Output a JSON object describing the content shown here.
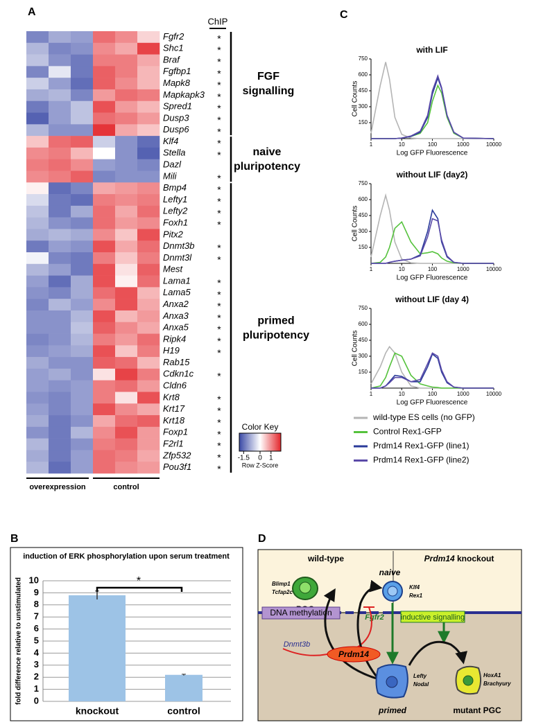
{
  "panels": [
    "A",
    "B",
    "C",
    "D"
  ],
  "chart_data": [
    {
      "type": "heatmap",
      "header_label": "ChIP",
      "rows": [
        "Fgfr2",
        "Shc1",
        "Braf",
        "Fgfbp1",
        "Mapk8",
        "Mapkapk3",
        "Spred1",
        "Dusp3",
        "Dusp6",
        "Klf4",
        "Stella",
        "Dazl",
        "Mili",
        "Bmp4",
        "Lefty1",
        "Lefty2",
        "Foxh1",
        "Pitx2",
        "Dnmt3b",
        "Dnmt3l",
        "Mest",
        "Lama1",
        "Lama5",
        "Anxa2",
        "Anxa3",
        "Anxa5",
        "Ripk4",
        "H19",
        "Rab15",
        "Cdkn1c",
        "Cldn6",
        "Krt8",
        "Krt17",
        "Krt18",
        "Foxp1",
        "F2rl1",
        "Zfp532",
        "Pou3f1"
      ],
      "values": [
        [
          -1,
          -0.7,
          -0.8,
          1,
          0.8,
          0.3
        ],
        [
          -0.6,
          -1,
          -0.9,
          0.8,
          0.6,
          1.3
        ],
        [
          -0.5,
          -0.9,
          -1.1,
          0.9,
          0.9,
          0.6
        ],
        [
          -1,
          -0.2,
          -1.1,
          1.1,
          0.9,
          0.5
        ],
        [
          -0.4,
          -0.8,
          -1.2,
          1.1,
          0.8,
          0.5
        ],
        [
          -0.7,
          -0.6,
          -1,
          0.7,
          1,
          0.9
        ],
        [
          -1.1,
          -0.8,
          -0.5,
          1.2,
          0.7,
          0.5
        ],
        [
          -1.3,
          -0.8,
          -0.5,
          1,
          0.9,
          0.7
        ],
        [
          -0.6,
          -0.9,
          -0.9,
          1.4,
          0.6,
          0.4
        ],
        [
          0.4,
          1,
          1.1,
          -0.4,
          -0.9,
          -1.2
        ],
        [
          0.8,
          0.9,
          0.5,
          0,
          -0.9,
          -1.3
        ],
        [
          0.9,
          1,
          0.8,
          -0.8,
          -0.9,
          -1
        ],
        [
          0.8,
          0.9,
          1.1,
          -1,
          -0.9,
          -0.9
        ],
        [
          0.1,
          -1.2,
          -1,
          0.6,
          0.7,
          0.8
        ],
        [
          -0.3,
          -1.1,
          -1.2,
          0.9,
          0.8,
          0.9
        ],
        [
          -0.5,
          -1.1,
          -0.7,
          1,
          0.6,
          1
        ],
        [
          -0.6,
          -0.9,
          -1,
          1,
          0.7,
          0.8
        ],
        [
          -0.7,
          -0.6,
          -0.7,
          0.8,
          0.4,
          1.2
        ],
        [
          -1.1,
          -0.8,
          -0.9,
          1.2,
          0.6,
          1
        ],
        [
          -0.1,
          -1,
          -1.1,
          0.9,
          0.4,
          0.9
        ],
        [
          -0.6,
          -0.8,
          -1.1,
          1.2,
          0.2,
          1.1
        ],
        [
          -0.8,
          -1.2,
          -0.7,
          1.2,
          0.1,
          1
        ],
        [
          -0.9,
          -1,
          -0.7,
          1,
          1.2,
          0.5
        ],
        [
          -1,
          -0.6,
          -0.8,
          0.8,
          1.2,
          0.6
        ],
        [
          -0.9,
          -0.9,
          -0.6,
          1.2,
          0.5,
          0.7
        ],
        [
          -0.9,
          -0.9,
          -0.5,
          1.1,
          0.8,
          0.6
        ],
        [
          -1,
          -0.9,
          -0.6,
          0.9,
          0.7,
          1
        ],
        [
          -0.9,
          -0.8,
          -0.7,
          1.2,
          0.4,
          0.9
        ],
        [
          -0.7,
          -0.9,
          -0.9,
          1.1,
          1,
          0.5
        ],
        [
          -0.8,
          -0.7,
          -0.9,
          0.2,
          1.3,
          0.9
        ],
        [
          -0.8,
          -0.9,
          -0.8,
          0.9,
          1,
          0.7
        ],
        [
          -0.9,
          -1,
          -0.8,
          0.9,
          0.2,
          1.2
        ],
        [
          -0.8,
          -1,
          -0.8,
          1.2,
          0.8,
          0.6
        ],
        [
          -0.7,
          -1.1,
          -0.9,
          0.6,
          1,
          1.1
        ],
        [
          -0.9,
          -1.1,
          -0.6,
          0.8,
          1.2,
          0.7
        ],
        [
          -0.6,
          -1.1,
          -0.9,
          0.9,
          1,
          0.7
        ],
        [
          -0.7,
          -1.1,
          -0.8,
          1,
          0.9,
          0.6
        ],
        [
          -0.6,
          -1.2,
          -0.8,
          1,
          0.8,
          0.7
        ]
      ],
      "chip": [
        "*",
        "*",
        "*",
        "*",
        "*",
        "*",
        "*",
        "*",
        "*",
        "*",
        "*",
        null,
        "*",
        "*",
        "*",
        "*",
        "*",
        null,
        "*",
        "*",
        null,
        "*",
        "*",
        "*",
        "*",
        "*",
        "*",
        "*",
        null,
        "*",
        null,
        "*",
        "*",
        "*",
        "*",
        "*",
        "*",
        "*"
      ],
      "groups": [
        [
          "FGF",
          "signalling"
        ],
        [
          "naive",
          "pluripotency"
        ],
        [
          "primed",
          "pluripotency"
        ]
      ],
      "column_groups": [
        "overexpression",
        "control"
      ],
      "colors": {
        "low": "#3b4aa6",
        "mid": "#ffffff",
        "high": "#e3262b"
      },
      "color_key": {
        "title": "Color Key",
        "xlabel": "Row Z-Score",
        "lim": [
          -1.9,
          1.9
        ],
        "ticks": [
          -1.5,
          0,
          1
        ]
      }
    },
    {
      "type": "line",
      "title": "with LIF",
      "xlabel": "Log GFP Fluorescence",
      "ylabel": "Cell Counts",
      "xlog": true,
      "xlim": [
        1,
        10000
      ],
      "xticks": [
        1,
        10,
        100,
        1000,
        10000
      ],
      "ylim": [
        0,
        750
      ],
      "yticks": [
        150,
        300,
        450,
        600,
        750
      ],
      "x": [
        1,
        2,
        3,
        4,
        6,
        10,
        20,
        40,
        70,
        100,
        150,
        200,
        300,
        500,
        1000,
        10000
      ],
      "series": [
        {
          "color": "#b4b4b4",
          "values": [
            50,
            500,
            720,
            560,
            200,
            40,
            5,
            0,
            0,
            0,
            0,
            0,
            0,
            0,
            0,
            0
          ]
        },
        {
          "color": "#55c23c",
          "values": [
            0,
            0,
            0,
            0,
            0,
            5,
            20,
            50,
            150,
            350,
            500,
            430,
            200,
            50,
            5,
            0
          ]
        },
        {
          "color": "#2a3a9a",
          "values": [
            0,
            0,
            0,
            0,
            0,
            5,
            20,
            60,
            200,
            420,
            570,
            470,
            220,
            60,
            5,
            0
          ]
        },
        {
          "color": "#5a4aa8",
          "values": [
            0,
            0,
            0,
            0,
            0,
            5,
            25,
            70,
            220,
            450,
            590,
            480,
            220,
            60,
            5,
            0
          ]
        }
      ]
    },
    {
      "type": "line",
      "title": "without LIF (day2)",
      "xlabel": "Log GFP Fluorescence",
      "ylabel": "Cell Counts",
      "xlog": true,
      "xlim": [
        1,
        10000
      ],
      "xticks": [
        1,
        10,
        100,
        1000,
        10000
      ],
      "ylim": [
        0,
        750
      ],
      "yticks": [
        150,
        300,
        450,
        600,
        750
      ],
      "x": [
        1,
        2,
        3,
        4,
        6,
        10,
        20,
        40,
        70,
        100,
        150,
        200,
        300,
        500,
        1000,
        10000
      ],
      "series": [
        {
          "color": "#b4b4b4",
          "values": [
            60,
            450,
            640,
            500,
            200,
            40,
            5,
            0,
            0,
            0,
            0,
            0,
            0,
            0,
            0,
            0
          ]
        },
        {
          "color": "#55c23c",
          "values": [
            0,
            10,
            60,
            150,
            330,
            390,
            200,
            90,
            100,
            110,
            90,
            50,
            20,
            5,
            0,
            0
          ]
        },
        {
          "color": "#2a3a9a",
          "values": [
            0,
            0,
            0,
            10,
            20,
            30,
            40,
            80,
            300,
            500,
            420,
            200,
            60,
            10,
            0,
            0
          ]
        },
        {
          "color": "#5a4aa8",
          "values": [
            0,
            0,
            0,
            10,
            20,
            30,
            40,
            70,
            250,
            420,
            400,
            220,
            70,
            10,
            0,
            0
          ]
        }
      ]
    },
    {
      "type": "line",
      "title": "without LIF (day 4)",
      "xlabel": "Log GFP Fluorescence",
      "ylabel": "Cell Counts",
      "xlog": true,
      "xlim": [
        1,
        10000
      ],
      "xticks": [
        1,
        10,
        100,
        1000,
        10000
      ],
      "ylim": [
        0,
        750
      ],
      "yticks": [
        150,
        300,
        450,
        600,
        750
      ],
      "x": [
        1,
        2,
        3,
        4,
        6,
        10,
        20,
        40,
        70,
        100,
        150,
        200,
        300,
        500,
        1000,
        10000
      ],
      "series": [
        {
          "color": "#b4b4b4",
          "values": [
            40,
            200,
            330,
            390,
            330,
            150,
            20,
            0,
            0,
            0,
            0,
            0,
            0,
            0,
            0,
            0
          ]
        },
        {
          "color": "#55c23c",
          "values": [
            0,
            20,
            100,
            200,
            330,
            300,
            120,
            40,
            20,
            10,
            5,
            0,
            0,
            0,
            0,
            0
          ]
        },
        {
          "color": "#2a3a9a",
          "values": [
            0,
            0,
            20,
            60,
            120,
            110,
            60,
            60,
            200,
            320,
            280,
            150,
            50,
            10,
            0,
            0
          ]
        },
        {
          "color": "#5a4aa8",
          "values": [
            0,
            0,
            20,
            50,
            100,
            100,
            60,
            80,
            230,
            330,
            300,
            170,
            60,
            10,
            0,
            0
          ]
        }
      ]
    },
    {
      "type": "bar",
      "title": "induction of ERK phosphorylation upon serum treatment",
      "ylabel": "fold difference relative to unstimulated",
      "categories": [
        "knockout",
        "control"
      ],
      "values": [
        8.8,
        2.2
      ],
      "errors": [
        0.35,
        0.05
      ],
      "color": "#9dc3e6",
      "ylim": [
        0,
        10
      ],
      "yticks": [
        0,
        1,
        2,
        3,
        4,
        5,
        6,
        7,
        8,
        9,
        10
      ],
      "grid": true,
      "annotation": "*"
    }
  ],
  "legend": [
    {
      "name": "wild-type ES cells (no GFP)",
      "color": "#b4b4b4"
    },
    {
      "name": "Control Rex1-GFP",
      "color": "#55c23c"
    },
    {
      "name": "Prdm14 Rex1-GFP (line1)",
      "color": "#2a3a9a"
    },
    {
      "name": "Prdm14 Rex1-GFP (line2)",
      "color": "#5a4aa8"
    }
  ],
  "diagram": {
    "wild_type": "wild-type",
    "knockout_gene": "Prdm14",
    "knockout_word": " knockout",
    "naive": "naive",
    "naive_markers": [
      "Klf4",
      "Rex1"
    ],
    "pgc_markers": [
      "Blimp1",
      "Tcfap2c"
    ],
    "pgc": "PGC",
    "fgfr2": "Fgfr2",
    "inductive": "inductive signalling",
    "dna_methylation": "DNA methylation",
    "dnmt3b": "Dnmt3b",
    "prdm14": "Prdm14",
    "primed_markers": [
      "Lefty",
      "Nodal"
    ],
    "primed": "primed",
    "mutant_markers": [
      "HoxA1",
      "Brachyury"
    ],
    "mutant_pgc": "mutant PGC"
  }
}
